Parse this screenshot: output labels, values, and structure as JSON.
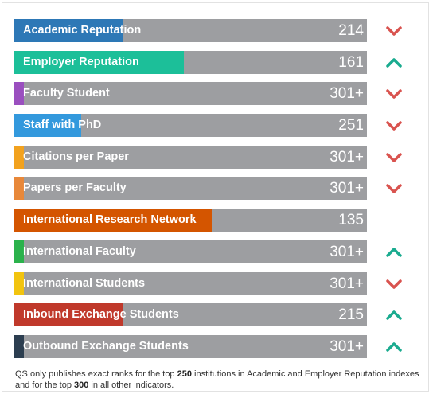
{
  "colors": {
    "track": "#9d9ea1",
    "down": "#d9534f",
    "up": "#1aab8f"
  },
  "indicators": [
    {
      "label": "Academic Reputation",
      "rank": "214",
      "fill": 0.31,
      "color": "#2d78b6",
      "trend": "down"
    },
    {
      "label": "Employer Reputation",
      "rank": "161",
      "fill": 0.48,
      "color": "#1cbf99",
      "trend": "up"
    },
    {
      "label": "Faculty Student",
      "rank": "301+",
      "fill": 0.027,
      "color": "#9a4fbf",
      "trend": "down"
    },
    {
      "label": "Staff with PhD",
      "rank": "251",
      "fill": 0.19,
      "color": "#3399dd",
      "trend": "down"
    },
    {
      "label": "Citations per Paper",
      "rank": "301+",
      "fill": 0.027,
      "color": "#f2a21e",
      "trend": "down"
    },
    {
      "label": "Papers per Faculty",
      "rank": "301+",
      "fill": 0.027,
      "color": "#e8883a",
      "trend": "down"
    },
    {
      "label": "International Research Network",
      "rank": "135",
      "fill": 0.56,
      "color": "#d45500",
      "trend": "none"
    },
    {
      "label": "International Faculty",
      "rank": "301+",
      "fill": 0.027,
      "color": "#2bb24c",
      "trend": "up"
    },
    {
      "label": "International Students",
      "rank": "301+",
      "fill": 0.027,
      "color": "#f2c40f",
      "trend": "down"
    },
    {
      "label": "Inbound Exchange Students",
      "rank": "215",
      "fill": 0.31,
      "color": "#c0392b",
      "trend": "up"
    },
    {
      "label": "Outbound Exchange Students",
      "rank": "301+",
      "fill": 0.027,
      "color": "#2c3e50",
      "trend": "up"
    }
  ],
  "footnote": {
    "part1": "QS only publishes exact ranks for the top ",
    "num1": "250",
    "part2": " institutions in Academic and Employer Reputation indexes and for the top ",
    "num2": "300",
    "part3": " in all other indicators."
  }
}
